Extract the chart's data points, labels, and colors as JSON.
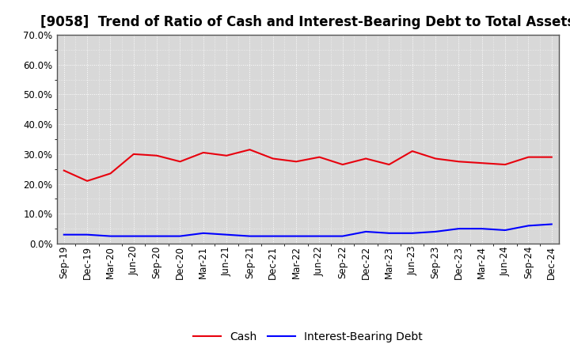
{
  "title": "[9058]  Trend of Ratio of Cash and Interest-Bearing Debt to Total Assets",
  "x_labels": [
    "Sep-19",
    "Dec-19",
    "Mar-20",
    "Jun-20",
    "Sep-20",
    "Dec-20",
    "Mar-21",
    "Jun-21",
    "Sep-21",
    "Dec-21",
    "Mar-22",
    "Jun-22",
    "Sep-22",
    "Dec-22",
    "Mar-23",
    "Jun-23",
    "Sep-23",
    "Dec-23",
    "Mar-24",
    "Jun-24",
    "Sep-24",
    "Dec-24"
  ],
  "cash": [
    24.5,
    21.0,
    23.5,
    30.0,
    29.5,
    27.5,
    30.5,
    29.5,
    31.5,
    28.5,
    27.5,
    29.0,
    26.5,
    28.5,
    26.5,
    31.0,
    28.5,
    27.5,
    27.0,
    26.5,
    29.0,
    29.0
  ],
  "ibd": [
    3.0,
    3.0,
    2.5,
    2.5,
    2.5,
    2.5,
    3.5,
    3.0,
    2.5,
    2.5,
    2.5,
    2.5,
    2.5,
    4.0,
    3.5,
    3.5,
    4.0,
    5.0,
    5.0,
    4.5,
    6.0,
    6.5
  ],
  "cash_color": "#e8000d",
  "ibd_color": "#0000ff",
  "background_color": "#ffffff",
  "plot_bg_color": "#d8d8d8",
  "grid_color": "#ffffff",
  "ylim": [
    0,
    70
  ],
  "yticks": [
    0,
    10,
    20,
    30,
    40,
    50,
    60,
    70
  ],
  "legend_labels": [
    "Cash",
    "Interest-Bearing Debt"
  ],
  "title_fontsize": 12,
  "tick_fontsize": 8.5,
  "legend_fontsize": 10
}
